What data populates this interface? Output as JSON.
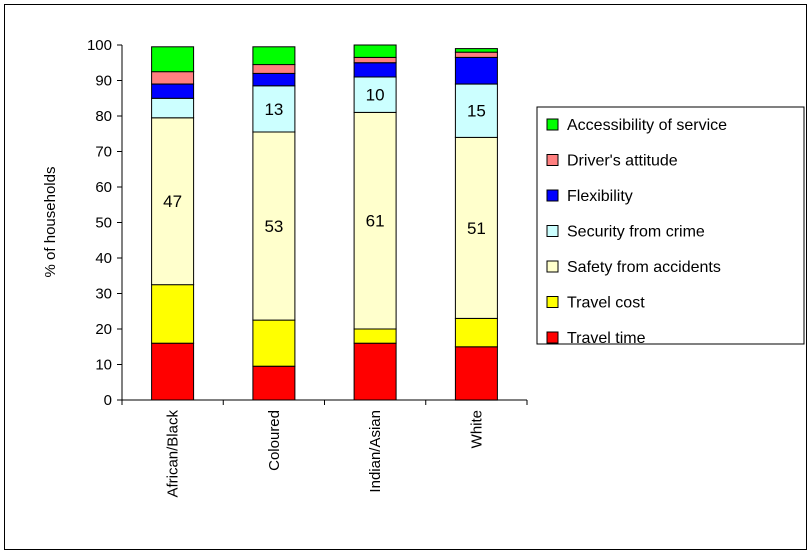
{
  "chart_data": {
    "type": "bar",
    "stacked": true,
    "title": "",
    "xlabel": "",
    "ylabel": "% of households",
    "ylim": [
      0,
      100
    ],
    "yticks": [
      0,
      10,
      20,
      30,
      40,
      50,
      60,
      70,
      80,
      90,
      100
    ],
    "grid": false,
    "legend_position": "right",
    "categories": [
      "African/Black",
      "Coloured",
      "Indian/Asian",
      "White"
    ],
    "series": [
      {
        "name": "Travel time",
        "color": "#ff0000",
        "values": [
          16,
          9.5,
          16,
          15
        ]
      },
      {
        "name": "Travel cost",
        "color": "#ffff00",
        "values": [
          16.5,
          13,
          4,
          8
        ]
      },
      {
        "name": "Safety from accidents",
        "color": "#ffffcc",
        "values": [
          47,
          53,
          61,
          51
        ]
      },
      {
        "name": "Security from crime",
        "color": "#ccffff",
        "values": [
          5.5,
          13,
          10,
          15
        ]
      },
      {
        "name": "Flexibility",
        "color": "#0000ff",
        "values": [
          4,
          3.5,
          4,
          7.5
        ]
      },
      {
        "name": "Driver's attitude",
        "color": "#ff8080",
        "values": [
          3.5,
          2.5,
          1.5,
          1.5
        ]
      },
      {
        "name": "Accessibility of service",
        "color": "#00ff00",
        "values": [
          7,
          5,
          3.5,
          1
        ]
      }
    ],
    "data_labels": [
      {
        "category": 0,
        "series": 2,
        "text": "47"
      },
      {
        "category": 1,
        "series": 2,
        "text": "53"
      },
      {
        "category": 1,
        "series": 3,
        "text": "13"
      },
      {
        "category": 2,
        "series": 2,
        "text": "61"
      },
      {
        "category": 2,
        "series": 3,
        "text": "10"
      },
      {
        "category": 3,
        "series": 2,
        "text": "51"
      },
      {
        "category": 3,
        "series": 3,
        "text": "15"
      }
    ]
  }
}
